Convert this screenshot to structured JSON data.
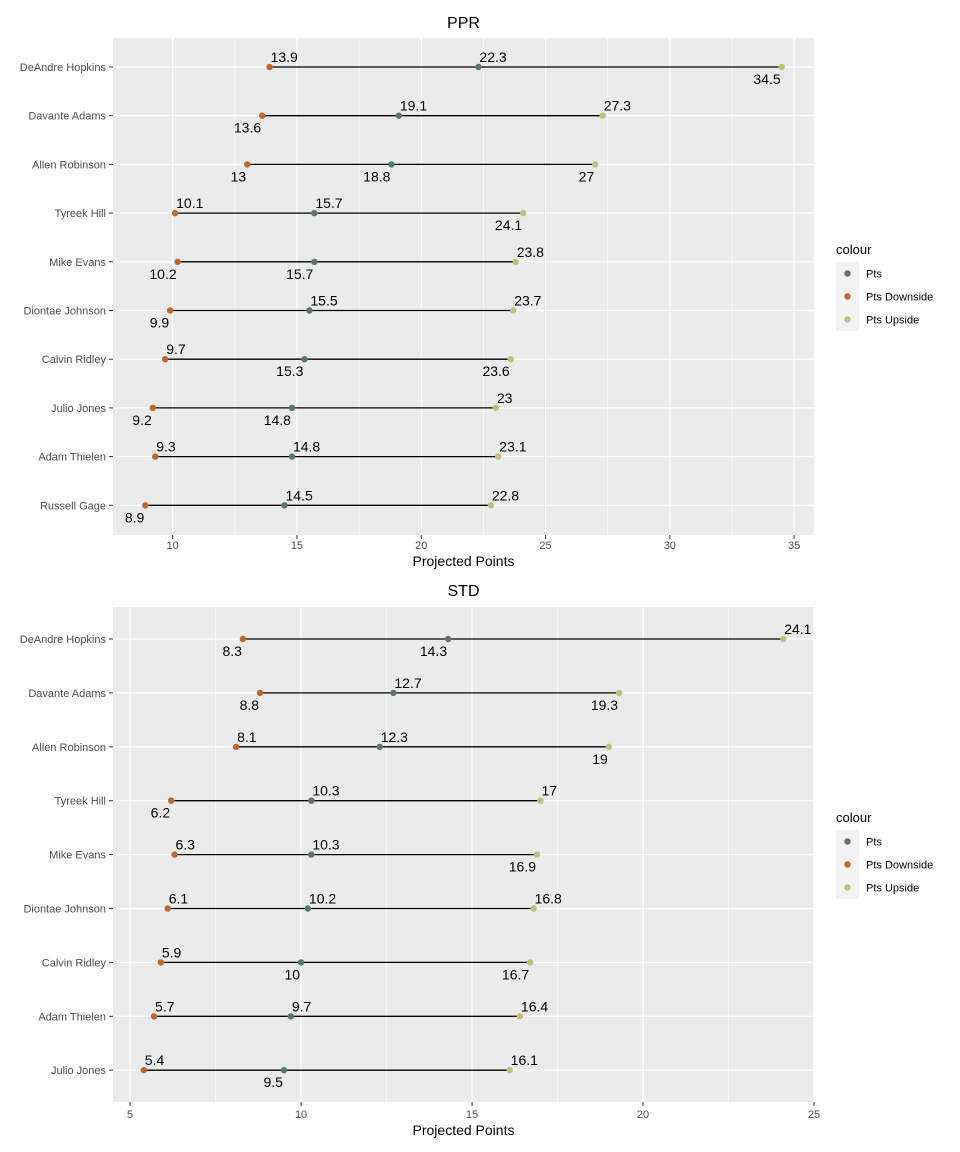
{
  "colors": {
    "panel": "#EBEBEB",
    "grid": "#FFFFFF",
    "segment": "#000000",
    "Pts": "#5B756E",
    "Pts Downside": "#C0672E",
    "Pts Upside": "#C2BE7D",
    "legend_key_bg": "#F2F2F2"
  },
  "chart_data": [
    {
      "type": "dumbbell",
      "title": "PPR",
      "xlabel": "Projected Points",
      "ylabel": "",
      "xlim": [
        7.6,
        35.8
      ],
      "xticks": [
        10,
        15,
        20,
        25,
        30,
        35
      ],
      "grid": true,
      "legend": {
        "title": "colour",
        "placement": "right",
        "entries": [
          "Pts",
          "Pts Downside",
          "Pts Upside"
        ]
      },
      "categories": [
        "DeAndre Hopkins",
        "Davante Adams",
        "Allen Robinson",
        "Tyreek Hill",
        "Mike Evans",
        "Diontae Johnson",
        "Calvin Ridley",
        "Julio Jones",
        "Adam Thielen",
        "Russell Gage"
      ],
      "series": [
        {
          "name": "Pts Downside",
          "values": [
            13.9,
            13.6,
            13.0,
            10.1,
            10.2,
            9.9,
            9.7,
            9.2,
            9.3,
            8.9
          ],
          "labels": [
            "13.9",
            "13.6",
            "13",
            "10.1",
            "10.2",
            "9.9",
            "9.7",
            "9.2",
            "9.3",
            "8.9"
          ],
          "label_pos": [
            "above",
            "below",
            "below",
            "above",
            "below",
            "below",
            "above",
            "below",
            "above",
            "below"
          ]
        },
        {
          "name": "Pts",
          "values": [
            22.3,
            19.1,
            18.8,
            15.7,
            15.7,
            15.5,
            15.3,
            14.8,
            14.8,
            14.5
          ],
          "labels": [
            "22.3",
            "19.1",
            "18.8",
            "15.7",
            "15.7",
            "15.5",
            "15.3",
            "14.8",
            "14.8",
            "14.5"
          ],
          "label_pos": [
            "above",
            "above",
            "below",
            "above",
            "below",
            "above",
            "below",
            "below",
            "above",
            "above"
          ]
        },
        {
          "name": "Pts Upside",
          "values": [
            34.5,
            27.3,
            27.0,
            24.1,
            23.8,
            23.7,
            23.6,
            23.0,
            23.1,
            22.8
          ],
          "labels": [
            "34.5",
            "27.3",
            "27",
            "24.1",
            "23.8",
            "23.7",
            "23.6",
            "23",
            "23.1",
            "22.8"
          ],
          "label_pos": [
            "below",
            "above",
            "below",
            "below",
            "above",
            "above",
            "below",
            "above",
            "above",
            "above"
          ]
        }
      ]
    },
    {
      "type": "dumbbell",
      "title": "STD",
      "xlabel": "Projected Points",
      "ylabel": "",
      "xlim": [
        4.5,
        25.0
      ],
      "xticks": [
        5,
        10,
        15,
        20,
        25
      ],
      "grid": true,
      "legend": {
        "title": "colour",
        "placement": "right",
        "entries": [
          "Pts",
          "Pts Downside",
          "Pts Upside"
        ]
      },
      "categories": [
        "DeAndre Hopkins",
        "Davante Adams",
        "Allen Robinson",
        "Tyreek Hill",
        "Mike Evans",
        "Diontae Johnson",
        "Calvin Ridley",
        "Adam Thielen",
        "Julio Jones"
      ],
      "series": [
        {
          "name": "Pts Downside",
          "values": [
            8.3,
            8.8,
            8.1,
            6.2,
            6.3,
            6.1,
            5.9,
            5.7,
            5.4
          ],
          "labels": [
            "8.3",
            "8.8",
            "8.1",
            "6.2",
            "6.3",
            "6.1",
            "5.9",
            "5.7",
            "5.4"
          ],
          "label_pos": [
            "below",
            "below",
            "above",
            "below",
            "above",
            "above",
            "above",
            "above",
            "above"
          ]
        },
        {
          "name": "Pts",
          "values": [
            14.3,
            12.7,
            12.3,
            10.3,
            10.3,
            10.2,
            10.0,
            9.7,
            9.5
          ],
          "labels": [
            "14.3",
            "12.7",
            "12.3",
            "10.3",
            "10.3",
            "10.2",
            "10",
            "9.7",
            "9.5"
          ],
          "label_pos": [
            "below",
            "above",
            "above",
            "above",
            "above",
            "above",
            "below",
            "above",
            "below"
          ]
        },
        {
          "name": "Pts Upside",
          "values": [
            24.1,
            19.3,
            19.0,
            17.0,
            16.9,
            16.8,
            16.7,
            16.4,
            16.1
          ],
          "labels": [
            "24.1",
            "19.3",
            "19",
            "17",
            "16.9",
            "16.8",
            "16.7",
            "16.4",
            "16.1"
          ],
          "label_pos": [
            "above",
            "below",
            "below",
            "above",
            "below",
            "above",
            "below",
            "above",
            "above"
          ]
        }
      ]
    }
  ]
}
